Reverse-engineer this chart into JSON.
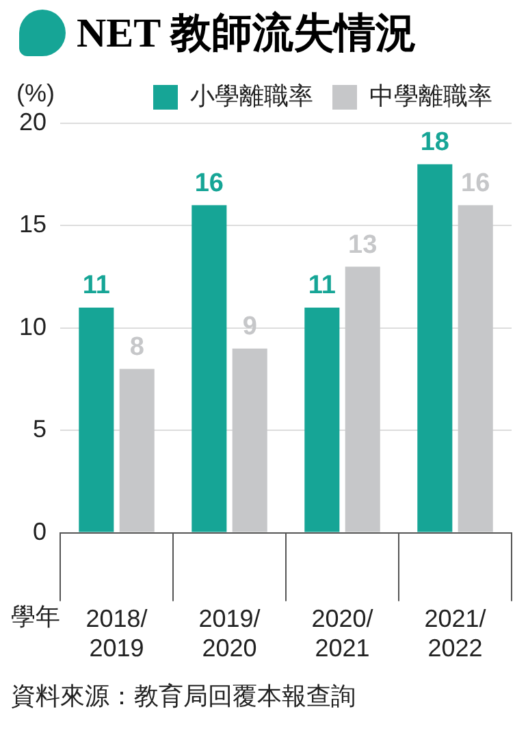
{
  "chart_data": {
    "type": "bar",
    "title": "NET 教師流失情況",
    "ylabel": "(%)",
    "xlabel": "學年",
    "categories": [
      "2018/2019",
      "2019/2020",
      "2020/2021",
      "2021/2022"
    ],
    "series": [
      {
        "name": "小學離職率",
        "color": "#16a596",
        "values": [
          11,
          16,
          11,
          18
        ]
      },
      {
        "name": "中學離職率",
        "color": "#c6c7c9",
        "values": [
          8,
          9,
          13,
          16
        ]
      }
    ],
    "ylim": [
      0,
      20
    ],
    "yticks": [
      0,
      5,
      10,
      15,
      20
    ],
    "grid": "y",
    "legend": "top",
    "data_labels": true,
    "annotations": [
      "資料來源：教育局回覆本報查詢"
    ]
  }
}
